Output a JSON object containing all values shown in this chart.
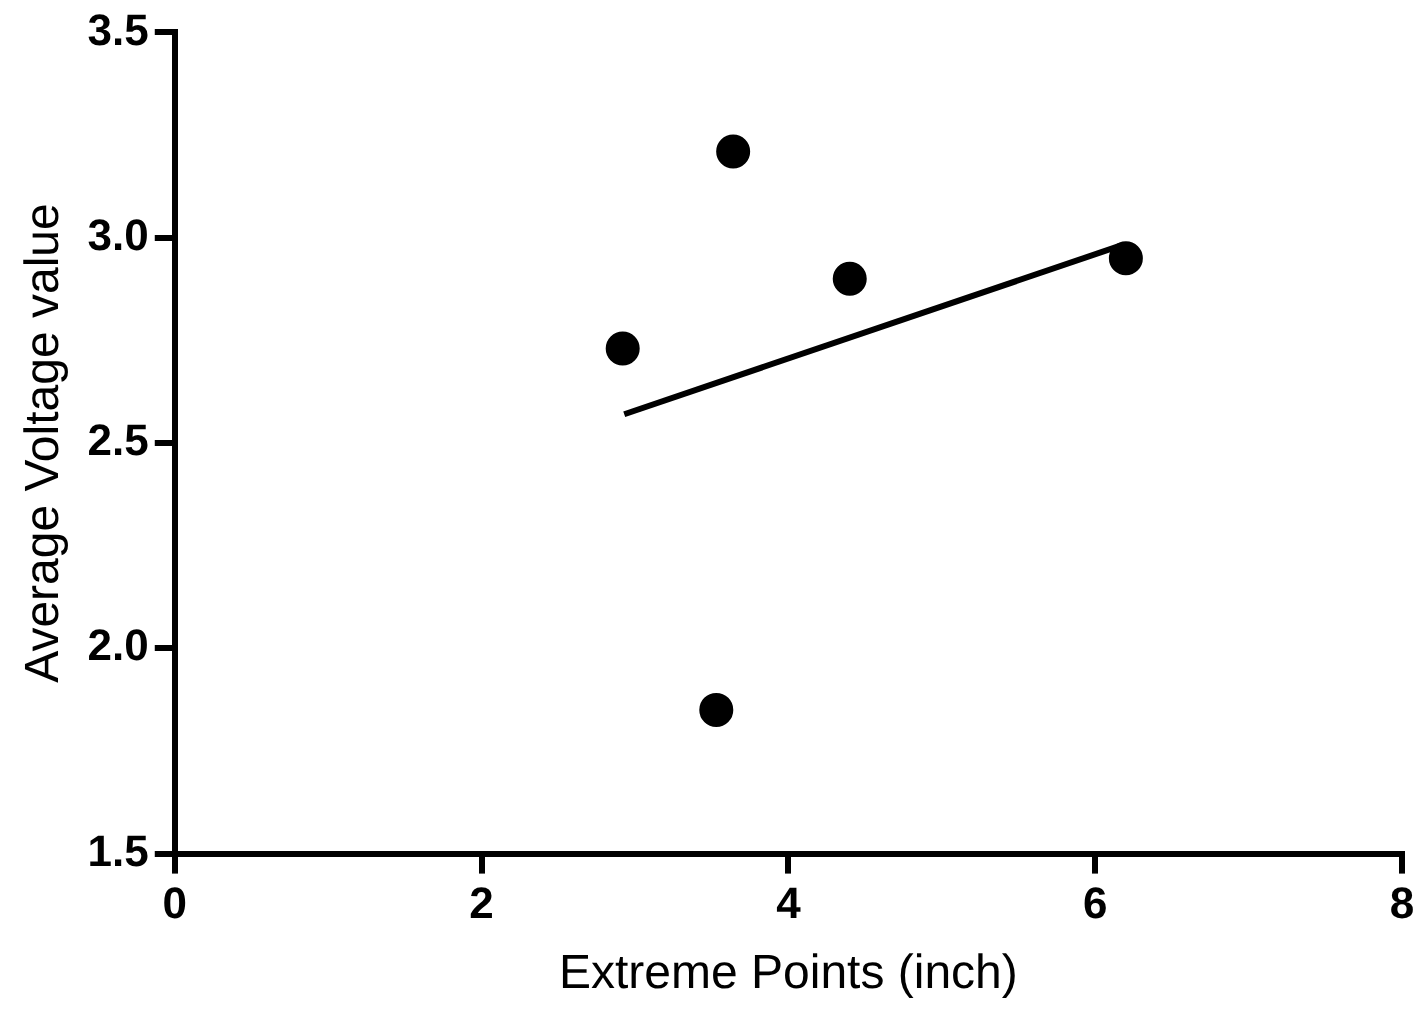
{
  "chart_data": {
    "type": "scatter",
    "xlabel": "Extreme Points (inch)",
    "ylabel": "Average Voltage value",
    "xlim": [
      0,
      8
    ],
    "xticks": [
      0,
      2,
      4,
      6,
      8
    ],
    "ylim": [
      1.5,
      3.5
    ],
    "yticks": [
      {
        "value": 1.5,
        "label": "1.5"
      },
      {
        "value": 2,
        "label": "2.0"
      },
      {
        "value": 2.5,
        "label": "2.5"
      },
      {
        "value": 3,
        "label": "3.0"
      },
      {
        "value": 3.5,
        "label": "3.5"
      }
    ],
    "grid": false,
    "legend": false,
    "marker": "circle",
    "series": [
      {
        "color": "#000000",
        "x": [
          2.92,
          3.64,
          4.4,
          6.2,
          3.53
        ],
        "values": [
          2.73,
          3.21,
          2.9,
          2.95,
          1.85
        ]
      },
      {
        "type": "line",
        "color": "#000000",
        "marker": "none",
        "x": [
          2.93,
          6.16
        ],
        "values": [
          2.57,
          2.98
        ]
      }
    ]
  }
}
